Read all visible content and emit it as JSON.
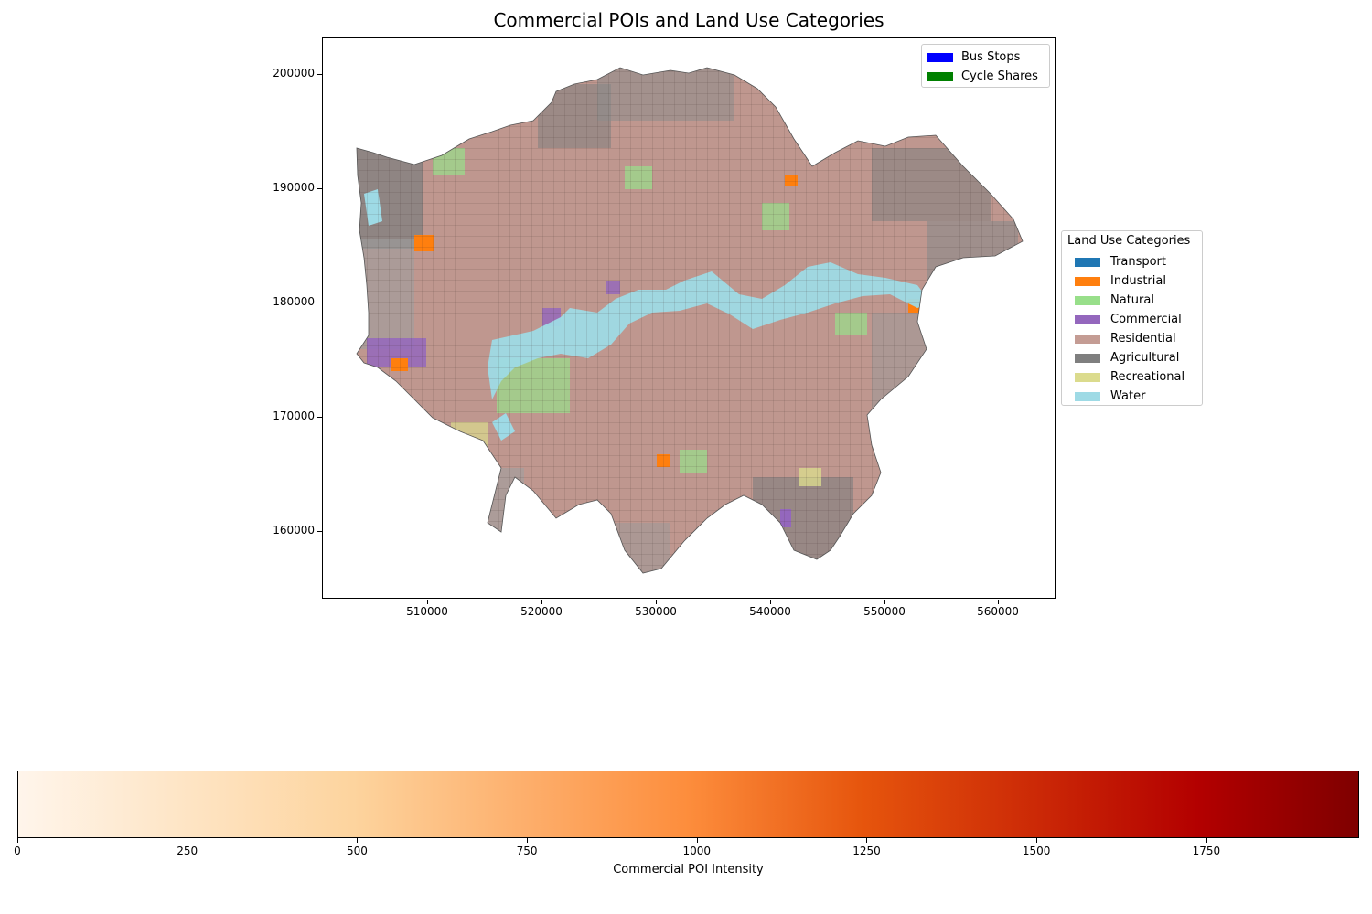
{
  "title": "Commercial POIs and Land Use Categories",
  "x_ticks": [
    "510000",
    "520000",
    "530000",
    "540000",
    "550000",
    "560000"
  ],
  "y_ticks": [
    "200000",
    "190000",
    "180000",
    "170000",
    "160000"
  ],
  "poi_legend": [
    {
      "label": "Bus Stops",
      "color": "#0000ff"
    },
    {
      "label": "Cycle Shares",
      "color": "#008000"
    }
  ],
  "landuse_legend": {
    "title": "Land Use Categories",
    "items": [
      {
        "label": "Transport",
        "color": "#1f77b4"
      },
      {
        "label": "Industrial",
        "color": "#ff7f0e"
      },
      {
        "label": "Natural",
        "color": "#98df8a"
      },
      {
        "label": "Commercial",
        "color": "#9467bd"
      },
      {
        "label": "Residential",
        "color": "#c49c94"
      },
      {
        "label": "Agricultural",
        "color": "#7f7f7f"
      },
      {
        "label": "Recreational",
        "color": "#dbdb8d"
      },
      {
        "label": "Water",
        "color": "#9edae5"
      }
    ]
  },
  "colorbar": {
    "label": "Commercial POI Intensity",
    "ticks": [
      "0",
      "250",
      "500",
      "750",
      "1000",
      "1250",
      "1500",
      "1750"
    ],
    "range": [
      0,
      1975
    ],
    "colormap": "OrRd"
  }
}
